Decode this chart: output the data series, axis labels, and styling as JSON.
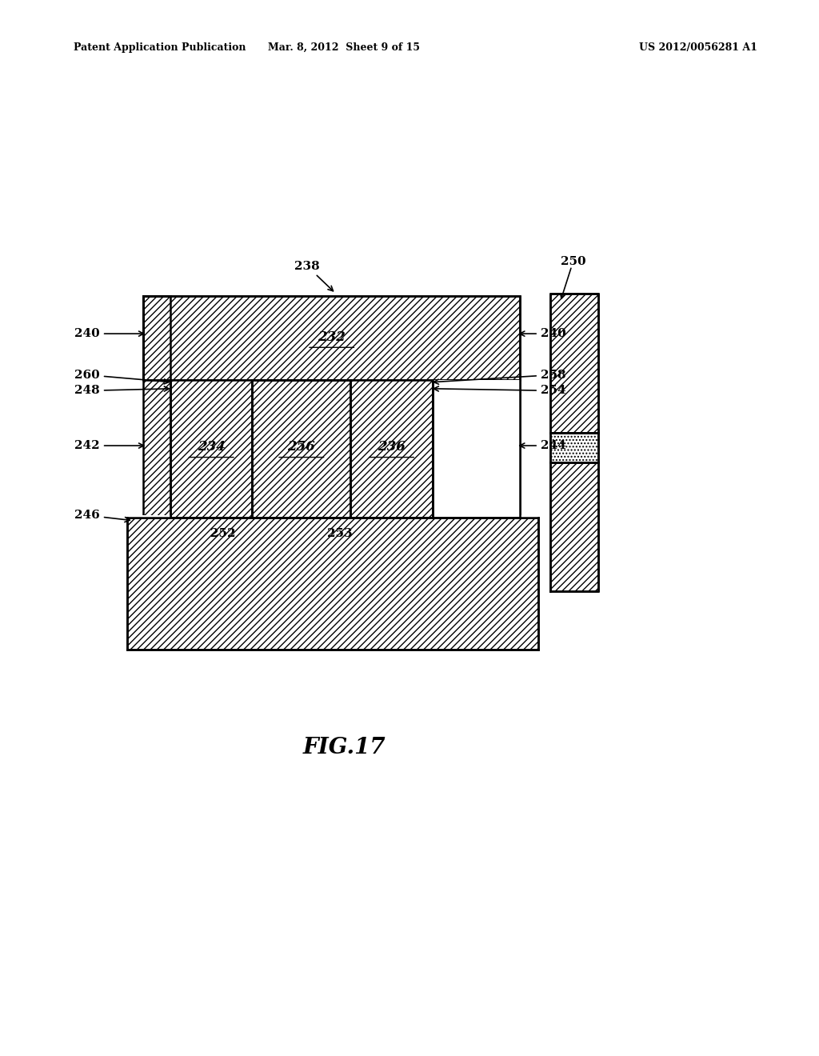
{
  "bg_color": "#ffffff",
  "header_left": "Patent Application Publication",
  "header_mid": "Mar. 8, 2012  Sheet 9 of 15",
  "header_right": "US 2012/0056281 A1",
  "fig_label": "FIG.17",
  "hatch_pattern": "////"
}
